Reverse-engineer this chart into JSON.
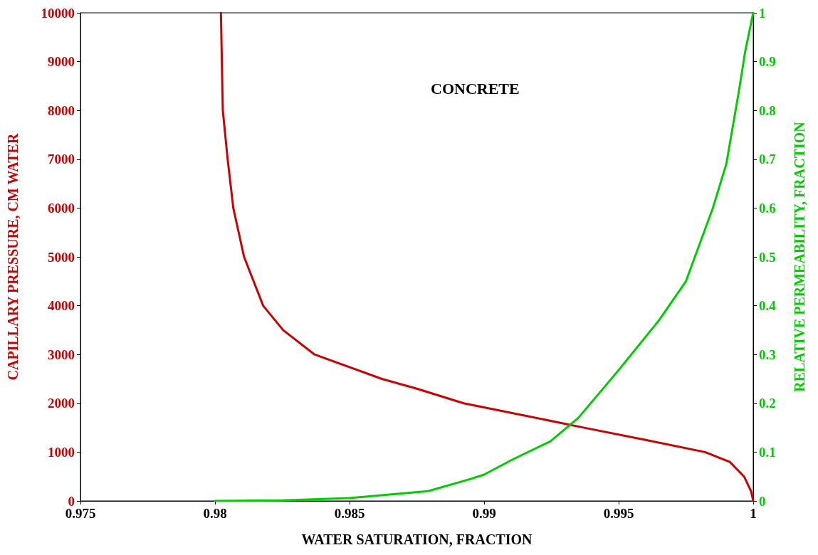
{
  "chart_data": {
    "type": "line",
    "title": "CONCRETE",
    "xlabel": "WATER SATURATION, FRACTION",
    "ylabel": "CAPILLARY PRESSURE, CM WATER",
    "y2label": "RELATIVE PERMEABILITY, FRACTION",
    "xlim": [
      0.975,
      1
    ],
    "xticks": [
      0.975,
      0.98,
      0.985,
      0.99,
      0.995,
      1
    ],
    "ylim": [
      0,
      10000
    ],
    "yticks": [
      0,
      1000,
      2000,
      3000,
      4000,
      5000,
      6000,
      7000,
      8000,
      9000,
      10000
    ],
    "y2lim": [
      0,
      1
    ],
    "y2ticks": [
      0,
      0.1,
      0.2,
      0.3,
      0.4,
      0.5,
      0.6,
      0.7,
      0.8,
      0.9,
      1
    ],
    "grid": false,
    "marker": "none",
    "line_style": "solid",
    "series": [
      {
        "color": "#cc0000",
        "x": [
          0.98022,
          0.98029,
          0.98047,
          0.98068,
          0.98108,
          0.98179,
          0.98253,
          0.9837,
          0.9862,
          0.9875,
          0.98924,
          0.9915,
          0.99372,
          0.996,
          0.99821,
          0.99913,
          0.99966,
          0.99992,
          1.0
        ],
        "values": [
          10000,
          8000,
          7000,
          6000,
          5000,
          4000,
          3500,
          3000,
          2500,
          2300,
          2000,
          1750,
          1500,
          1250,
          1000,
          800,
          500,
          200,
          0
        ]
      },
      {
        "color": "#00cc00",
        "axis": "y2",
        "x": [
          0.98,
          0.9825,
          0.985,
          0.98792,
          0.9895,
          0.99,
          0.9911,
          0.99246,
          0.9935,
          0.995,
          0.9965,
          0.9975,
          0.9985,
          0.999,
          0.99947,
          0.9997,
          1.0
        ],
        "values": [
          0,
          0.001,
          0.006,
          0.02,
          0.045,
          0.054,
          0.086,
          0.122,
          0.17,
          0.268,
          0.37,
          0.45,
          0.6,
          0.69,
          0.84,
          0.92,
          1.0
        ]
      }
    ]
  }
}
